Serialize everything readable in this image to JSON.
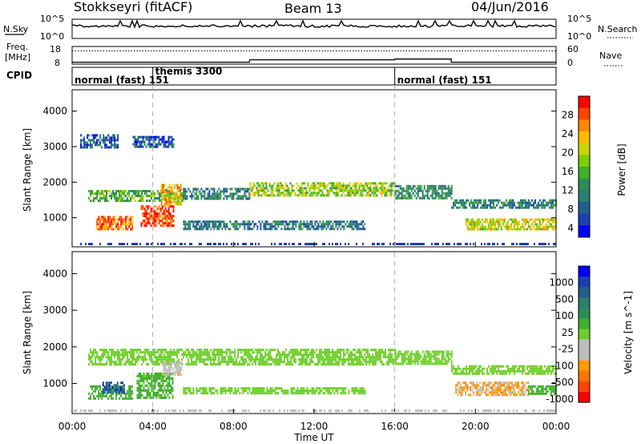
{
  "header": {
    "station": "Stokkseyri (fitACF)",
    "beam": "Beam 13",
    "date": "04/Jun/2016"
  },
  "noise_panel": {
    "left_label": "N.Sky",
    "right_label": "N.Search",
    "ticks": [
      "10^5",
      "10^0"
    ],
    "right_ticks": [
      "10^5",
      "10^0"
    ]
  },
  "freq_panel": {
    "left_label_line1": "Freq.",
    "left_label_line2": "[MHz]",
    "left_ticks": [
      "18",
      "8"
    ],
    "right_label": "Nave",
    "right_ticks": [
      "60",
      "0"
    ]
  },
  "cpid_panel": {
    "label": "CPID",
    "modes": [
      {
        "name": "normal (fast)",
        "id": "151",
        "start_hour": 0
      },
      {
        "name": "themis",
        "id": "3300",
        "start_hour": 4
      },
      {
        "name": "normal (fast)",
        "id": "151",
        "start_hour": 16
      }
    ]
  },
  "power_panel": {
    "ylabel": "Slant Range [km]",
    "yticks": [
      "4000",
      "3000",
      "2000",
      "1000"
    ],
    "colorbar_label": "Power [dB]",
    "colorbar_ticks": [
      "28",
      "24",
      "20",
      "16",
      "12",
      "8",
      "4"
    ],
    "colorbar_colors": [
      "#ff0000",
      "#ff4400",
      "#ff8800",
      "#ffbb00",
      "#c8d400",
      "#7ccf00",
      "#3fae2a",
      "#2e8b57",
      "#2a7e6e",
      "#215f8e",
      "#1c3fb0",
      "#0000ff"
    ]
  },
  "velocity_panel": {
    "ylabel": "Slant Range [km]",
    "yticks": [
      "4000",
      "3000",
      "2000",
      "1000"
    ],
    "colorbar_label": "Velocity [m s^-1]",
    "colorbar_ticks": [
      "1000",
      "500",
      "100",
      "25",
      "-25",
      "-100",
      "-500",
      "-1000"
    ],
    "colorbar_colors": [
      "#0000ff",
      "#1c3fb0",
      "#215f8e",
      "#2a7e6e",
      "#2e8b57",
      "#3fae2a",
      "#6fcf2a",
      "#bdbdbd",
      "#bdbdbd",
      "#ff9900",
      "#ff7700",
      "#ff4400",
      "#ff0000"
    ]
  },
  "time_axis": {
    "xlabel": "Time UT",
    "ticks": [
      "00:00",
      "04:00",
      "08:00",
      "12:00",
      "16:00",
      "20:00",
      "00:00"
    ]
  },
  "chart_data": {
    "type": "heatmap",
    "title": "Stokkseyri (fitACF)",
    "subtitle": "Beam 13",
    "date": "04/Jun/2016",
    "xlabel": "Time UT",
    "xlim_hours": [
      0,
      24
    ],
    "ylim_km": [
      180,
      4600
    ],
    "panels": [
      {
        "name": "Power",
        "ylabel": "Slant Range [km]",
        "colorbar": "Power [dB]",
        "crange": [
          0,
          30
        ],
        "echo_bands": [
          {
            "t0": 0.8,
            "t1": 5.5,
            "r0": 1480,
            "r1": 1780,
            "value": 14
          },
          {
            "t0": 5.5,
            "t1": 8.8,
            "r0": 1560,
            "r1": 1840,
            "value": 9
          },
          {
            "t0": 8.8,
            "t1": 16.0,
            "r0": 1640,
            "r1": 2000,
            "value": 17
          },
          {
            "t0": 16.0,
            "t1": 18.8,
            "r0": 1580,
            "r1": 1920,
            "value": 10
          },
          {
            "t0": 18.8,
            "t1": 24.0,
            "r0": 1300,
            "r1": 1520,
            "value": 9
          },
          {
            "t0": 1.2,
            "t1": 3.0,
            "r0": 650,
            "r1": 1050,
            "value": 25
          },
          {
            "t0": 3.4,
            "t1": 5.0,
            "r0": 800,
            "r1": 1350,
            "value": 27
          },
          {
            "t0": 4.4,
            "t1": 5.4,
            "r0": 1400,
            "r1": 1950,
            "value": 21
          },
          {
            "t0": 5.5,
            "t1": 14.5,
            "r0": 700,
            "r1": 920,
            "value": 8
          },
          {
            "t0": 19.5,
            "t1": 24.0,
            "r0": 680,
            "r1": 980,
            "value": 19
          },
          {
            "t0": 0.4,
            "t1": 2.3,
            "r0": 3000,
            "r1": 3350,
            "value": 6
          },
          {
            "t0": 3.0,
            "t1": 5.0,
            "r0": 3000,
            "r1": 3300,
            "value": 6
          }
        ]
      },
      {
        "name": "Velocity",
        "ylabel": "Slant Range [km]",
        "colorbar": "Velocity [m s^-1]",
        "crange": [
          -1000,
          1000
        ],
        "echo_bands": [
          {
            "t0": 0.8,
            "t1": 16.0,
            "r0": 1500,
            "r1": 1950,
            "value": 0
          },
          {
            "t0": 16.0,
            "t1": 18.8,
            "r0": 1550,
            "r1": 1900,
            "value": 0
          },
          {
            "t0": 18.8,
            "t1": 24.0,
            "r0": 1300,
            "r1": 1500,
            "value": 0
          },
          {
            "t0": 0.8,
            "t1": 3.0,
            "r0": 600,
            "r1": 950,
            "value": 150
          },
          {
            "t0": 1.5,
            "t1": 2.6,
            "r0": 750,
            "r1": 1050,
            "value": 700
          },
          {
            "t0": 3.2,
            "t1": 5.0,
            "r0": 600,
            "r1": 1300,
            "value": 120
          },
          {
            "t0": 4.5,
            "t1": 5.4,
            "r0": 1250,
            "r1": 1600,
            "value": -300
          },
          {
            "t0": 5.5,
            "t1": 14.5,
            "r0": 720,
            "r1": 900,
            "value": 0
          },
          {
            "t0": 19.0,
            "t1": 22.6,
            "r0": 700,
            "r1": 1050,
            "value": -400
          },
          {
            "t0": 22.6,
            "t1": 24.0,
            "r0": 700,
            "r1": 950,
            "value": 150
          }
        ]
      }
    ],
    "frequency_mhz_segments": [
      {
        "t0": 0,
        "t1": 8.8,
        "value": 9.3
      },
      {
        "t0": 8.8,
        "t1": 16.0,
        "value": 11.0
      },
      {
        "t0": 16.0,
        "t1": 18.8,
        "value": 11.5
      },
      {
        "t0": 18.8,
        "t1": 24.0,
        "value": 9.3
      }
    ],
    "nave_level": 45
  }
}
